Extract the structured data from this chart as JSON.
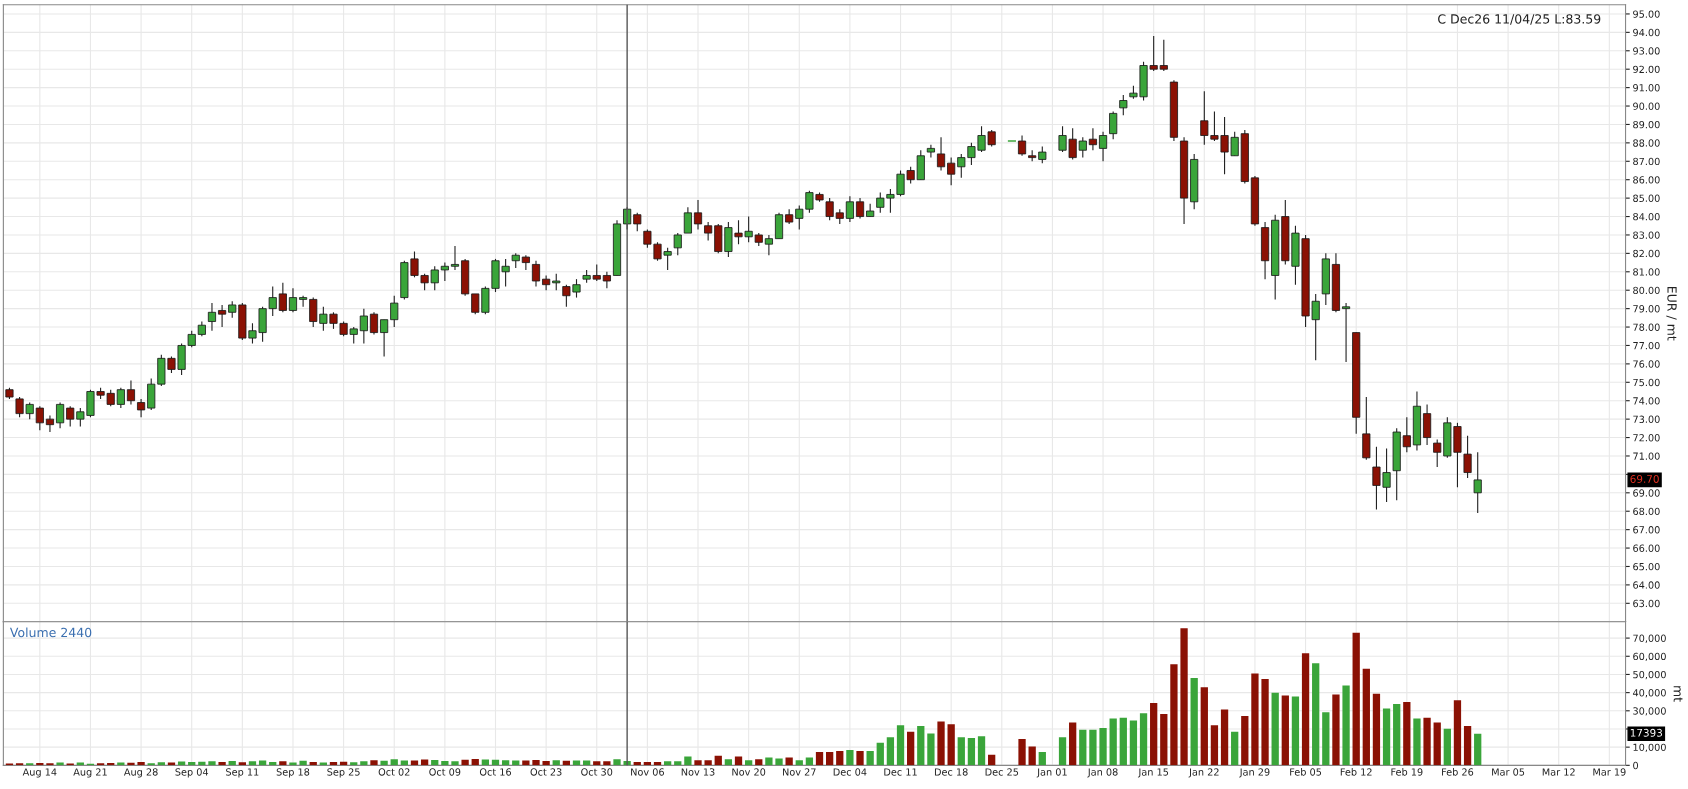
{
  "chart_data": [
    {
      "type": "candlestick",
      "title": "C Dec26 11/04/25 L:83.59",
      "ylabel": "EUR / mt",
      "categories": [
        null,
        null,
        null,
        null,
        null,
        null,
        null,
        null,
        null,
        null,
        null,
        null,
        null,
        null,
        null,
        null,
        null,
        null,
        null,
        null,
        null,
        null,
        null,
        null,
        null,
        null,
        null,
        null,
        null,
        null,
        null,
        null,
        null,
        null,
        null,
        null,
        null,
        null,
        null,
        null,
        null,
        null,
        null,
        null,
        null,
        null,
        null,
        null,
        null,
        null,
        null,
        null,
        null,
        null,
        null,
        null,
        null,
        null,
        null,
        null,
        null,
        null,
        null,
        null,
        null,
        null,
        null,
        null,
        null,
        null,
        null,
        null,
        null,
        null,
        null,
        null,
        null,
        null,
        null,
        null,
        null,
        null,
        null,
        null,
        null,
        null,
        null,
        null,
        null,
        null,
        null,
        null,
        null,
        null,
        null,
        null,
        null,
        null,
        null,
        null,
        null,
        null,
        null,
        null,
        null,
        null,
        null,
        null,
        null,
        null,
        null,
        null,
        null,
        null,
        null,
        null,
        null,
        null,
        null,
        null,
        null,
        null,
        null,
        null,
        null,
        null,
        null,
        null,
        null,
        null,
        null,
        null,
        null,
        null,
        null,
        null,
        null,
        null,
        null,
        null,
        null,
        null,
        null,
        null,
        null,
        null,
        null,
        null,
        null,
        null,
        null,
        null,
        null,
        null,
        null,
        null,
        null,
        null,
        null,
        null
      ],
      "ohlc": [
        [
          74.6,
          74.7,
          74.1,
          74.2
        ],
        [
          74.1,
          74.2,
          73.1,
          73.3
        ],
        [
          73.3,
          73.9,
          73.0,
          73.8
        ],
        [
          73.6,
          73.7,
          72.4,
          72.8
        ],
        [
          73.0,
          73.2,
          72.3,
          72.7
        ],
        [
          72.8,
          73.9,
          72.5,
          73.8
        ],
        [
          73.6,
          73.7,
          72.6,
          73.0
        ],
        [
          73.0,
          73.6,
          72.6,
          73.4
        ],
        [
          73.2,
          74.6,
          73.1,
          74.5
        ],
        [
          74.5,
          74.7,
          74.1,
          74.3
        ],
        [
          74.4,
          74.6,
          73.7,
          73.8
        ],
        [
          73.8,
          74.7,
          73.6,
          74.6
        ],
        [
          74.6,
          75.1,
          73.8,
          74.0
        ],
        [
          73.9,
          74.1,
          73.1,
          73.5
        ],
        [
          73.6,
          75.2,
          73.5,
          74.9
        ],
        [
          74.9,
          76.5,
          74.8,
          76.3
        ],
        [
          76.3,
          76.4,
          75.5,
          75.7
        ],
        [
          75.7,
          77.1,
          75.4,
          77.0
        ],
        [
          77.0,
          77.8,
          76.9,
          77.6
        ],
        [
          77.6,
          78.3,
          77.5,
          78.1
        ],
        [
          78.3,
          79.3,
          77.8,
          78.8
        ],
        [
          78.9,
          79.2,
          78.0,
          78.7
        ],
        [
          78.8,
          79.4,
          78.5,
          79.2
        ],
        [
          79.2,
          79.3,
          77.3,
          77.4
        ],
        [
          77.4,
          78.2,
          77.1,
          77.8
        ],
        [
          77.7,
          79.1,
          77.2,
          79.0
        ],
        [
          79.0,
          80.2,
          78.6,
          79.6
        ],
        [
          79.8,
          80.4,
          78.8,
          78.9
        ],
        [
          78.9,
          80.1,
          78.8,
          79.6
        ],
        [
          79.5,
          79.7,
          79.1,
          79.6
        ],
        [
          79.5,
          79.6,
          78.0,
          78.3
        ],
        [
          78.2,
          79.1,
          77.8,
          78.7
        ],
        [
          78.7,
          78.8,
          77.9,
          78.2
        ],
        [
          78.2,
          78.3,
          77.5,
          77.6
        ],
        [
          77.6,
          78.0,
          77.1,
          77.9
        ],
        [
          77.8,
          79.0,
          77.1,
          78.6
        ],
        [
          78.7,
          78.8,
          77.6,
          77.7
        ],
        [
          77.7,
          78.4,
          76.4,
          78.4
        ],
        [
          78.4,
          79.7,
          78.0,
          79.3
        ],
        [
          79.6,
          81.6,
          79.5,
          81.5
        ],
        [
          81.7,
          82.1,
          80.7,
          80.8
        ],
        [
          80.8,
          80.9,
          80.0,
          80.4
        ],
        [
          80.4,
          81.3,
          80.0,
          81.1
        ],
        [
          81.1,
          81.5,
          80.5,
          81.3
        ],
        [
          81.3,
          82.4,
          81.1,
          81.4
        ],
        [
          81.6,
          81.7,
          79.7,
          79.8
        ],
        [
          79.8,
          79.8,
          78.7,
          78.8
        ],
        [
          78.8,
          80.2,
          78.7,
          80.1
        ],
        [
          80.1,
          81.7,
          79.9,
          81.6
        ],
        [
          81.0,
          81.7,
          80.2,
          81.3
        ],
        [
          81.6,
          82.0,
          81.2,
          81.9
        ],
        [
          81.8,
          81.9,
          81.1,
          81.5
        ],
        [
          81.4,
          81.6,
          80.2,
          80.5
        ],
        [
          80.6,
          80.8,
          80.0,
          80.3
        ],
        [
          80.4,
          80.9,
          80.0,
          80.5
        ],
        [
          80.2,
          80.3,
          79.1,
          79.7
        ],
        [
          79.9,
          80.6,
          79.6,
          80.3
        ],
        [
          80.6,
          81.1,
          80.4,
          80.8
        ],
        [
          80.8,
          81.4,
          80.5,
          80.6
        ],
        [
          80.8,
          81.0,
          80.1,
          80.5
        ],
        [
          80.8,
          83.8,
          80.8,
          83.6
        ],
        [
          83.6,
          84.5,
          83.3,
          84.4
        ],
        [
          84.1,
          84.2,
          83.2,
          83.6
        ],
        [
          83.2,
          83.3,
          82.3,
          82.5
        ],
        [
          82.5,
          82.6,
          81.6,
          81.7
        ],
        [
          81.9,
          82.3,
          81.1,
          82.1
        ],
        [
          82.3,
          83.1,
          81.9,
          83.0
        ],
        [
          83.1,
          84.5,
          83.1,
          84.2
        ],
        [
          84.2,
          84.9,
          83.3,
          83.6
        ],
        [
          83.5,
          83.7,
          82.7,
          83.1
        ],
        [
          83.5,
          83.6,
          82.0,
          82.1
        ],
        [
          82.1,
          83.7,
          81.8,
          83.4
        ],
        [
          83.1,
          83.8,
          82.5,
          82.9
        ],
        [
          82.9,
          84.0,
          82.6,
          83.2
        ],
        [
          83.0,
          83.1,
          82.4,
          82.6
        ],
        [
          82.5,
          83.0,
          81.9,
          82.8
        ],
        [
          82.8,
          84.2,
          82.8,
          84.1
        ],
        [
          84.1,
          84.4,
          83.6,
          83.7
        ],
        [
          83.9,
          84.6,
          83.3,
          84.4
        ],
        [
          84.4,
          85.4,
          84.2,
          85.3
        ],
        [
          85.2,
          85.3,
          84.8,
          84.9
        ],
        [
          84.8,
          85.0,
          83.8,
          84.0
        ],
        [
          84.2,
          84.4,
          83.6,
          83.9
        ],
        [
          83.9,
          85.1,
          83.7,
          84.8
        ],
        [
          84.8,
          85.0,
          83.9,
          84.0
        ],
        [
          84.0,
          84.7,
          84.0,
          84.3
        ],
        [
          84.5,
          85.3,
          84.2,
          85.0
        ],
        [
          85.0,
          85.5,
          84.2,
          85.2
        ],
        [
          85.2,
          86.5,
          85.1,
          86.3
        ],
        [
          86.5,
          86.7,
          85.8,
          86.0
        ],
        [
          86.0,
          87.6,
          86.0,
          87.3
        ],
        [
          87.5,
          87.9,
          87.2,
          87.7
        ],
        [
          87.4,
          88.3,
          86.5,
          86.7
        ],
        [
          86.9,
          87.2,
          85.7,
          86.3
        ],
        [
          86.7,
          87.4,
          86.1,
          87.2
        ],
        [
          87.2,
          88.0,
          86.8,
          87.8
        ],
        [
          87.6,
          88.9,
          87.5,
          88.4
        ],
        [
          88.6,
          88.7,
          87.8,
          87.9
        ],
        null,
        [
          88.1,
          88.1,
          88.1,
          88.1
        ],
        [
          88.1,
          88.4,
          87.3,
          87.4
        ],
        [
          87.3,
          87.6,
          87.0,
          87.2
        ],
        [
          87.1,
          87.8,
          86.9,
          87.5
        ],
        null,
        [
          87.6,
          88.9,
          87.5,
          88.4
        ],
        [
          88.2,
          88.8,
          87.1,
          87.2
        ],
        [
          87.6,
          88.3,
          87.2,
          88.1
        ],
        [
          88.2,
          88.8,
          87.6,
          87.9
        ],
        [
          87.7,
          88.6,
          87.0,
          88.4
        ],
        [
          88.5,
          89.7,
          88.2,
          89.6
        ],
        [
          89.9,
          90.6,
          89.5,
          90.3
        ],
        [
          90.5,
          91.1,
          90.4,
          90.7
        ],
        [
          90.5,
          92.4,
          90.3,
          92.2
        ],
        [
          92.2,
          93.8,
          91.9,
          92.0
        ],
        [
          92.2,
          93.6,
          91.9,
          92.0
        ],
        [
          91.3,
          91.4,
          88.1,
          88.3
        ],
        [
          88.1,
          88.3,
          83.6,
          85.0
        ],
        [
          84.8,
          87.4,
          84.4,
          87.1
        ],
        [
          89.2,
          90.8,
          87.9,
          88.4
        ],
        [
          88.4,
          89.7,
          88.1,
          88.2
        ],
        [
          88.4,
          89.4,
          86.3,
          87.5
        ],
        [
          87.3,
          88.6,
          87.3,
          88.3
        ],
        [
          88.5,
          88.7,
          85.8,
          85.9
        ],
        [
          86.1,
          86.2,
          83.5,
          83.6
        ],
        [
          83.4,
          83.7,
          80.6,
          81.6
        ],
        [
          80.8,
          84.1,
          79.5,
          83.8
        ],
        [
          84.0,
          84.9,
          81.4,
          81.6
        ],
        [
          81.3,
          83.5,
          80.3,
          83.1
        ],
        [
          82.8,
          83.0,
          78.0,
          78.6
        ],
        [
          78.4,
          79.8,
          76.2,
          79.4
        ],
        [
          79.8,
          82.0,
          79.2,
          81.7
        ],
        [
          81.4,
          82.0,
          78.8,
          78.9
        ],
        [
          79.0,
          79.3,
          76.1,
          79.1
        ],
        [
          77.7,
          77.7,
          72.2,
          73.1
        ],
        [
          72.2,
          74.2,
          70.8,
          70.9
        ],
        [
          70.4,
          71.5,
          68.1,
          69.4
        ],
        [
          69.3,
          71.4,
          68.5,
          70.1
        ],
        [
          70.2,
          72.5,
          68.6,
          72.3
        ],
        [
          72.1,
          73.1,
          71.2,
          71.5
        ],
        [
          71.6,
          74.5,
          71.3,
          73.7
        ],
        [
          73.3,
          73.8,
          71.6,
          72.0
        ],
        [
          71.7,
          71.9,
          70.4,
          71.2
        ],
        [
          71.0,
          73.1,
          70.9,
          72.8
        ],
        [
          72.6,
          72.8,
          69.3,
          71.2
        ],
        [
          71.1,
          72.1,
          69.8,
          70.1
        ],
        [
          69.0,
          71.2,
          67.9,
          69.7
        ],
        null,
        null,
        null,
        null,
        null,
        null,
        null,
        null,
        null,
        null,
        null,
        null,
        null,
        null
      ],
      "colors": [
        "#8b1104",
        "#8b1104",
        "#3aa53a",
        "#8b1104",
        "#8b1104",
        "#3aa53a",
        "#8b1104",
        "#3aa53a",
        "#3aa53a",
        "#8b1104",
        "#8b1104",
        "#3aa53a",
        "#8b1104",
        "#8b1104",
        "#3aa53a",
        "#3aa53a",
        "#8b1104",
        "#3aa53a",
        "#3aa53a",
        "#3aa53a",
        "#3aa53a",
        "#8b1104",
        "#3aa53a",
        "#8b1104",
        "#3aa53a",
        "#3aa53a",
        "#3aa53a",
        "#8b1104",
        "#3aa53a",
        "#3aa53a",
        "#8b1104",
        "#3aa53a",
        "#8b1104",
        "#8b1104",
        "#3aa53a",
        "#3aa53a",
        "#8b1104",
        "#3aa53a",
        "#3aa53a",
        "#3aa53a",
        "#8b1104",
        "#8b1104",
        "#3aa53a",
        "#3aa53a",
        "#3aa53a",
        "#8b1104",
        "#8b1104",
        "#3aa53a",
        "#3aa53a",
        "#3aa53a",
        "#3aa53a",
        "#8b1104",
        "#8b1104",
        "#8b1104",
        "#3aa53a",
        "#8b1104",
        "#3aa53a",
        "#3aa53a",
        "#8b1104",
        "#8b1104",
        "#3aa53a",
        "#3aa53a",
        "#8b1104",
        "#8b1104",
        "#8b1104",
        "#3aa53a",
        "#3aa53a",
        "#3aa53a",
        "#8b1104",
        "#8b1104",
        "#8b1104",
        "#3aa53a",
        "#8b1104",
        "#3aa53a",
        "#8b1104",
        "#3aa53a",
        "#3aa53a",
        "#8b1104",
        "#3aa53a",
        "#3aa53a",
        "#8b1104",
        "#8b1104",
        "#8b1104",
        "#3aa53a",
        "#8b1104",
        "#3aa53a",
        "#3aa53a",
        "#3aa53a",
        "#3aa53a",
        "#8b1104",
        "#3aa53a",
        "#3aa53a",
        "#8b1104",
        "#8b1104",
        "#3aa53a",
        "#3aa53a",
        "#3aa53a",
        "#8b1104",
        null,
        "#3aa53a",
        "#8b1104",
        "#8b1104",
        "#3aa53a",
        null,
        "#3aa53a",
        "#8b1104",
        "#3aa53a",
        "#8b1104",
        "#3aa53a",
        "#3aa53a",
        "#3aa53a",
        "#3aa53a",
        "#3aa53a",
        "#8b1104",
        "#8b1104",
        "#8b1104",
        "#8b1104",
        "#3aa53a",
        "#8b1104",
        "#8b1104",
        "#8b1104",
        "#3aa53a",
        "#8b1104",
        "#8b1104",
        "#8b1104",
        "#3aa53a",
        "#8b1104",
        "#3aa53a",
        "#8b1104",
        "#3aa53a",
        "#3aa53a",
        "#8b1104",
        "#3aa53a",
        "#8b1104",
        "#8b1104",
        "#8b1104",
        "#3aa53a",
        "#3aa53a",
        "#8b1104",
        "#3aa53a",
        "#8b1104",
        "#8b1104",
        "#3aa53a",
        "#8b1104",
        "#8b1104",
        "#3aa53a",
        null,
        null,
        null,
        null,
        null,
        null,
        null,
        null,
        null,
        null,
        null,
        null,
        null,
        null
      ],
      "ylim": [
        62,
        95.5
      ],
      "yticks": [
        {
          "value": 63,
          "label": "63.00"
        },
        {
          "value": 64,
          "label": "64.00"
        },
        {
          "value": 65,
          "label": "65.00"
        },
        {
          "value": 66,
          "label": "66.00"
        },
        {
          "value": 67,
          "label": "67.00"
        },
        {
          "value": 68,
          "label": "68.00"
        },
        {
          "value": 69,
          "label": "69.00"
        },
        {
          "value": 70,
          "label": null
        },
        {
          "value": 71,
          "label": "71.00"
        },
        {
          "value": 72,
          "label": "72.00"
        },
        {
          "value": 73,
          "label": "73.00"
        },
        {
          "value": 74,
          "label": "74.00"
        },
        {
          "value": 75,
          "label": "75.00"
        },
        {
          "value": 76,
          "label": "76.00"
        },
        {
          "value": 77,
          "label": "77.00"
        },
        {
          "value": 78,
          "label": "78.00"
        },
        {
          "value": 79,
          "label": "79.00"
        },
        {
          "value": 80,
          "label": "80.00"
        },
        {
          "value": 81,
          "label": "81.00"
        },
        {
          "value": 82,
          "label": "82.00"
        },
        {
          "value": 83,
          "label": "83.00"
        },
        {
          "value": 84,
          "label": "84.00"
        },
        {
          "value": 85,
          "label": "85.00"
        },
        {
          "value": 86,
          "label": "86.00"
        },
        {
          "value": 87,
          "label": "87.00"
        },
        {
          "value": 88,
          "label": "88.00"
        },
        {
          "value": 89,
          "label": "89.00"
        },
        {
          "value": 90,
          "label": "90.00"
        },
        {
          "value": 91,
          "label": "91.00"
        },
        {
          "value": 92,
          "label": "92.00"
        },
        {
          "value": 93,
          "label": "93.00"
        },
        {
          "value": 94,
          "label": "94.00"
        },
        {
          "value": 95,
          "label": "95.00"
        }
      ],
      "tick_labels": "y",
      "grid": true,
      "annotations": [
        "69.70"
      ]
    },
    {
      "type": "bar",
      "title": "Volume 2440",
      "ylabel": "mt",
      "categories": [
        null,
        null,
        null,
        "Aug 14",
        null,
        null,
        null,
        null,
        "Aug 21",
        null,
        null,
        null,
        null,
        "Aug 28",
        null,
        null,
        null,
        null,
        "Sep 04",
        null,
        null,
        null,
        null,
        "Sep 11",
        null,
        null,
        null,
        null,
        "Sep 18",
        null,
        null,
        null,
        null,
        "Sep 25",
        null,
        null,
        null,
        null,
        "Oct 02",
        null,
        null,
        null,
        null,
        "Oct 09",
        null,
        null,
        null,
        null,
        "Oct 16",
        null,
        null,
        null,
        null,
        "Oct 23",
        null,
        null,
        null,
        null,
        "Oct 30",
        null,
        null,
        null,
        null,
        "Nov 06",
        null,
        null,
        null,
        null,
        "Nov 13",
        null,
        null,
        null,
        null,
        "Nov 20",
        null,
        null,
        null,
        null,
        "Nov 27",
        null,
        null,
        null,
        null,
        "Dec 04",
        null,
        null,
        null,
        null,
        "Dec 11",
        null,
        null,
        null,
        null,
        "Dec 18",
        null,
        null,
        null,
        null,
        "Dec 25",
        null,
        null,
        null,
        null,
        "Jan 01",
        null,
        null,
        null,
        null,
        "Jan 08",
        null,
        null,
        null,
        null,
        "Jan 15",
        null,
        null,
        null,
        null,
        "Jan 22",
        null,
        null,
        null,
        null,
        "Jan 29",
        null,
        null,
        null,
        null,
        "Feb 05",
        null,
        null,
        null,
        null,
        "Feb 12",
        null,
        null,
        null,
        null,
        "Feb 19",
        null,
        null,
        null,
        null,
        "Feb 26",
        null,
        null,
        null,
        null,
        "Mar 05",
        null,
        null,
        null,
        null,
        "Mar 12",
        null,
        null,
        null,
        null,
        "Mar 19",
        null
      ],
      "values": [
        1000,
        1200,
        1100,
        1300,
        1200,
        1500,
        1000,
        1600,
        900,
        1200,
        1300,
        1500,
        1400,
        1800,
        1200,
        1700,
        1500,
        2100,
        1800,
        2000,
        2300,
        1900,
        2400,
        1700,
        2200,
        2600,
        1900,
        2200,
        1500,
        2500,
        1800,
        1600,
        1800,
        2000,
        1700,
        2200,
        2800,
        2500,
        3300,
        2600,
        2700,
        3200,
        2900,
        2400,
        2300,
        3100,
        3500,
        3200,
        3100,
        2800,
        2700,
        2600,
        2900,
        2400,
        2800,
        2500,
        2700,
        2600,
        2200,
        2300,
        3400,
        2440,
        1800,
        1800,
        1800,
        2300,
        2300,
        4800,
        2800,
        2800,
        5300,
        3300,
        4800,
        2800,
        3300,
        4300,
        3800,
        4300,
        2800,
        4300,
        7400,
        7400,
        7900,
        8400,
        7900,
        7900,
        12400,
        15500,
        22100,
        18500,
        21600,
        17500,
        24100,
        22600,
        15500,
        15000,
        16000,
        5800,
        null,
        null,
        14500,
        10400,
        7400,
        null,
        15500,
        23600,
        19600,
        19600,
        20600,
        25700,
        26200,
        24600,
        28700,
        34300,
        28200,
        55600,
        75400,
        48000,
        42900,
        22100,
        30700,
        18500,
        27200,
        50500,
        47500,
        39900,
        38400,
        37800,
        61700,
        56100,
        29200,
        38900,
        43900,
        72900,
        53100,
        39400,
        31200,
        33800,
        34800,
        25700,
        26200,
        23600,
        20100,
        35800,
        21600,
        17393,
        null,
        null,
        null,
        null,
        null,
        null,
        null,
        null,
        null,
        null,
        null,
        null,
        null,
        null
      ],
      "colors": [
        "#8b1104",
        "#8b1104",
        "#3aa53a",
        "#8b1104",
        "#8b1104",
        "#3aa53a",
        "#8b1104",
        "#3aa53a",
        "#3aa53a",
        "#8b1104",
        "#8b1104",
        "#3aa53a",
        "#8b1104",
        "#8b1104",
        "#3aa53a",
        "#3aa53a",
        "#8b1104",
        "#3aa53a",
        "#3aa53a",
        "#3aa53a",
        "#3aa53a",
        "#8b1104",
        "#3aa53a",
        "#8b1104",
        "#3aa53a",
        "#3aa53a",
        "#3aa53a",
        "#8b1104",
        "#3aa53a",
        "#3aa53a",
        "#8b1104",
        "#3aa53a",
        "#8b1104",
        "#8b1104",
        "#3aa53a",
        "#3aa53a",
        "#8b1104",
        "#3aa53a",
        "#3aa53a",
        "#3aa53a",
        "#8b1104",
        "#8b1104",
        "#3aa53a",
        "#3aa53a",
        "#3aa53a",
        "#8b1104",
        "#8b1104",
        "#3aa53a",
        "#3aa53a",
        "#3aa53a",
        "#3aa53a",
        "#8b1104",
        "#8b1104",
        "#8b1104",
        "#3aa53a",
        "#8b1104",
        "#3aa53a",
        "#3aa53a",
        "#8b1104",
        "#8b1104",
        "#3aa53a",
        "#3aa53a",
        "#8b1104",
        "#8b1104",
        "#8b1104",
        "#3aa53a",
        "#3aa53a",
        "#3aa53a",
        "#8b1104",
        "#8b1104",
        "#8b1104",
        "#3aa53a",
        "#8b1104",
        "#3aa53a",
        "#8b1104",
        "#3aa53a",
        "#3aa53a",
        "#8b1104",
        "#3aa53a",
        "#3aa53a",
        "#8b1104",
        "#8b1104",
        "#8b1104",
        "#3aa53a",
        "#8b1104",
        "#3aa53a",
        "#3aa53a",
        "#3aa53a",
        "#3aa53a",
        "#8b1104",
        "#3aa53a",
        "#3aa53a",
        "#8b1104",
        "#8b1104",
        "#3aa53a",
        "#3aa53a",
        "#3aa53a",
        "#8b1104",
        null,
        null,
        "#8b1104",
        "#8b1104",
        "#3aa53a",
        null,
        "#3aa53a",
        "#8b1104",
        "#3aa53a",
        "#3aa53a",
        "#3aa53a",
        "#3aa53a",
        "#3aa53a",
        "#3aa53a",
        "#3aa53a",
        "#8b1104",
        "#8b1104",
        "#8b1104",
        "#8b1104",
        "#3aa53a",
        "#8b1104",
        "#8b1104",
        "#8b1104",
        "#3aa53a",
        "#8b1104",
        "#8b1104",
        "#8b1104",
        "#3aa53a",
        "#8b1104",
        "#3aa53a",
        "#8b1104",
        "#3aa53a",
        "#3aa53a",
        "#8b1104",
        "#3aa53a",
        "#8b1104",
        "#8b1104",
        "#8b1104",
        "#3aa53a",
        "#3aa53a",
        "#8b1104",
        "#3aa53a",
        "#8b1104",
        "#8b1104",
        "#3aa53a",
        "#8b1104",
        "#8b1104",
        "#3aa53a",
        null,
        null,
        null,
        null,
        null,
        null,
        null,
        null,
        null,
        null,
        null,
        null,
        null,
        null
      ],
      "ylim": [
        0,
        79000
      ],
      "yticks": [
        0,
        {
          "value": 10000,
          "label": "10,000"
        },
        {
          "value": 20000,
          "label": null
        },
        {
          "value": 30000,
          "label": "30,000"
        },
        {
          "value": 40000,
          "label": "40,000"
        },
        {
          "value": 50000,
          "label": "50,000"
        },
        {
          "value": 60000,
          "label": "60,000"
        },
        {
          "value": 70000,
          "label": "70,000"
        }
      ],
      "grid": true,
      "annotations": [
        "17393"
      ]
    }
  ]
}
